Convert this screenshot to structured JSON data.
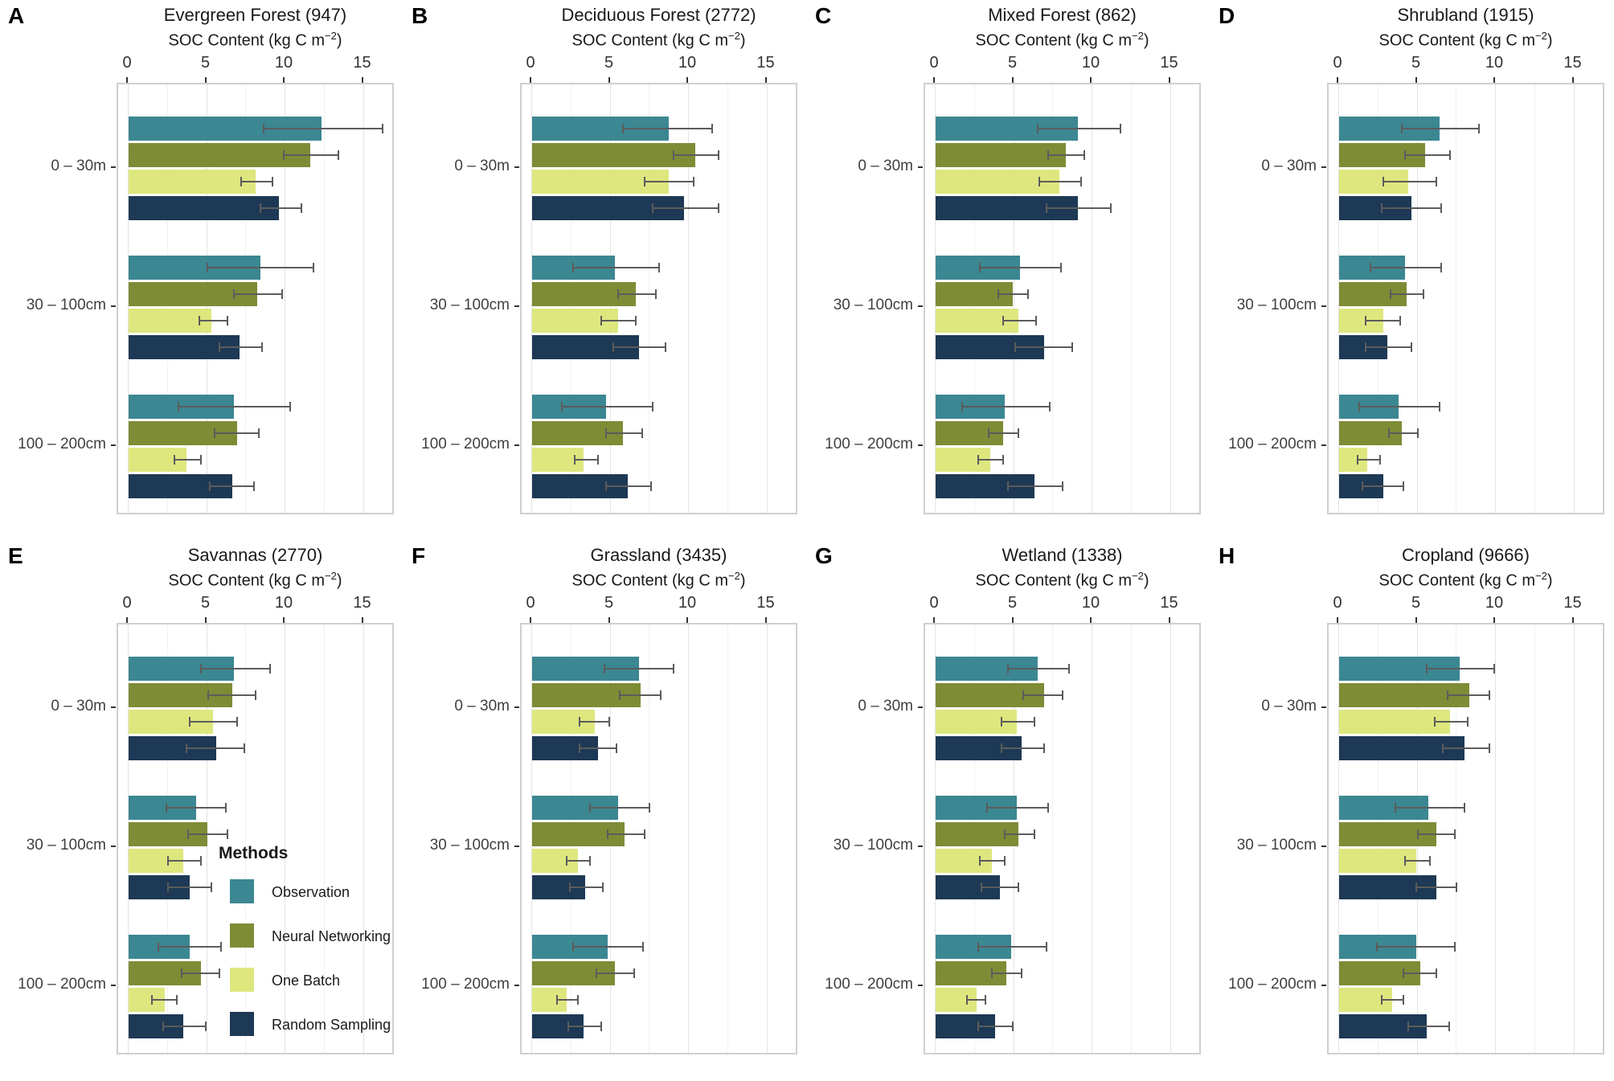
{
  "chart_data": {
    "type": "bar",
    "orientation": "horizontal",
    "xlabel": "SOC Content (kg C m⁻²)",
    "xlabel_prefix": "SOC Content (kg C m",
    "xlabel_sup": "−2",
    "xlabel_suffix": ")",
    "x_ticks": [
      0,
      5,
      10,
      15
    ],
    "xlim": [
      0,
      16.9
    ],
    "grid_minor": [
      2.5,
      7.5,
      12.5
    ],
    "categories": [
      "0 – 30m",
      "30 – 100cm",
      "100 – 200cm"
    ],
    "legend_title": "Methods",
    "methods": [
      {
        "name": "Observation",
        "color": "#3B8792"
      },
      {
        "name": "Neural Networking",
        "color": "#7E8C36"
      },
      {
        "name": "One Batch",
        "color": "#DDE77E"
      },
      {
        "name": "Random Sampling",
        "color": "#1D3955"
      }
    ],
    "error_bar_color": "#5c5c5c",
    "panels": [
      {
        "letter": "A",
        "title": "Evergreen Forest (947)",
        "values": [
          [
            12.3,
            11.6,
            8.1,
            9.6
          ],
          [
            8.4,
            8.2,
            5.3,
            7.1
          ],
          [
            6.7,
            6.9,
            3.7,
            6.6
          ]
        ],
        "err_lo": [
          [
            8.6,
            9.9,
            7.2,
            8.4
          ],
          [
            5.0,
            6.7,
            4.5,
            5.8
          ],
          [
            3.2,
            5.5,
            2.9,
            5.2
          ]
        ],
        "err_hi": [
          [
            16.2,
            13.4,
            9.2,
            11.0
          ],
          [
            11.8,
            9.8,
            6.3,
            8.5
          ],
          [
            10.3,
            8.3,
            4.6,
            8.0
          ]
        ]
      },
      {
        "letter": "B",
        "title": "Deciduous Forest (2772)",
        "values": [
          [
            8.7,
            10.4,
            8.7,
            9.7
          ],
          [
            5.3,
            6.6,
            5.5,
            6.8
          ],
          [
            4.7,
            5.8,
            3.3,
            6.1
          ]
        ],
        "err_lo": [
          [
            5.8,
            9.0,
            7.2,
            7.7
          ],
          [
            2.6,
            5.5,
            4.4,
            5.2
          ],
          [
            1.9,
            4.7,
            2.7,
            4.7
          ]
        ],
        "err_hi": [
          [
            11.5,
            11.9,
            10.3,
            11.9
          ],
          [
            8.1,
            7.9,
            6.6,
            8.5
          ],
          [
            7.7,
            7.0,
            4.2,
            7.6
          ]
        ]
      },
      {
        "letter": "C",
        "title": "Mixed Forest (862)",
        "values": [
          [
            9.1,
            8.3,
            7.9,
            9.1
          ],
          [
            5.4,
            4.9,
            5.3,
            6.9
          ],
          [
            4.4,
            4.3,
            3.5,
            6.3
          ]
        ],
        "err_lo": [
          [
            6.5,
            7.2,
            6.6,
            7.1
          ],
          [
            2.8,
            4.0,
            4.3,
            5.1
          ],
          [
            1.7,
            3.4,
            2.7,
            4.6
          ]
        ],
        "err_hi": [
          [
            11.8,
            9.5,
            9.3,
            11.2
          ],
          [
            8.0,
            5.9,
            6.4,
            8.7
          ],
          [
            7.3,
            5.3,
            4.3,
            8.1
          ]
        ]
      },
      {
        "letter": "D",
        "title": "Shrubland (1915)",
        "values": [
          [
            6.4,
            5.5,
            4.4,
            4.6
          ],
          [
            4.2,
            4.3,
            2.8,
            3.1
          ],
          [
            3.8,
            4.0,
            1.8,
            2.8
          ]
        ],
        "err_lo": [
          [
            4.0,
            4.2,
            2.8,
            2.7
          ],
          [
            2.0,
            3.3,
            1.7,
            1.7
          ],
          [
            1.3,
            3.2,
            1.2,
            1.5
          ]
        ],
        "err_hi": [
          [
            8.9,
            7.1,
            6.2,
            6.5
          ],
          [
            6.5,
            5.4,
            3.9,
            4.6
          ],
          [
            6.4,
            5.0,
            2.6,
            4.1
          ]
        ]
      },
      {
        "letter": "E",
        "title": "Savannas (2770)",
        "values": [
          [
            6.7,
            6.6,
            5.4,
            5.6
          ],
          [
            4.3,
            5.0,
            3.5,
            3.9
          ],
          [
            3.9,
            4.6,
            2.3,
            3.5
          ]
        ],
        "err_lo": [
          [
            4.6,
            5.1,
            3.9,
            3.7
          ],
          [
            2.4,
            3.8,
            2.5,
            2.5
          ],
          [
            1.9,
            3.4,
            1.5,
            2.2
          ]
        ],
        "err_hi": [
          [
            9.0,
            8.1,
            6.9,
            7.4
          ],
          [
            6.2,
            6.3,
            4.6,
            5.3
          ],
          [
            5.9,
            5.8,
            3.1,
            4.9
          ]
        ]
      },
      {
        "letter": "F",
        "title": "Grassland (3435)",
        "values": [
          [
            6.8,
            6.9,
            4.0,
            4.2
          ],
          [
            5.5,
            5.9,
            2.9,
            3.4
          ],
          [
            4.8,
            5.3,
            2.2,
            3.3
          ]
        ],
        "err_lo": [
          [
            4.6,
            5.6,
            3.0,
            3.0
          ],
          [
            3.7,
            4.8,
            2.2,
            2.4
          ],
          [
            2.6,
            4.1,
            1.6,
            2.3
          ]
        ],
        "err_hi": [
          [
            9.0,
            8.2,
            4.9,
            5.4
          ],
          [
            7.5,
            7.2,
            3.7,
            4.5
          ],
          [
            7.1,
            6.5,
            2.9,
            4.4
          ]
        ]
      },
      {
        "letter": "G",
        "title": "Wetland (1338)",
        "values": [
          [
            6.5,
            6.9,
            5.2,
            5.5
          ],
          [
            5.2,
            5.3,
            3.6,
            4.1
          ],
          [
            4.8,
            4.5,
            2.6,
            3.8
          ]
        ],
        "err_lo": [
          [
            4.6,
            5.6,
            4.2,
            4.2
          ],
          [
            3.3,
            4.4,
            2.8,
            2.9
          ],
          [
            2.7,
            3.6,
            2.0,
            2.7
          ]
        ],
        "err_hi": [
          [
            8.5,
            8.1,
            6.3,
            6.9
          ],
          [
            7.2,
            6.3,
            4.4,
            5.3
          ],
          [
            7.1,
            5.5,
            3.2,
            4.9
          ]
        ]
      },
      {
        "letter": "H",
        "title": "Cropland (9666)",
        "values": [
          [
            7.7,
            8.3,
            7.1,
            8.0
          ],
          [
            5.7,
            6.2,
            4.9,
            6.2
          ],
          [
            4.9,
            5.2,
            3.4,
            5.6
          ]
        ],
        "err_lo": [
          [
            5.6,
            6.9,
            6.1,
            6.6
          ],
          [
            3.6,
            5.0,
            4.2,
            4.9
          ],
          [
            2.4,
            4.1,
            2.7,
            4.4
          ]
        ],
        "err_hi": [
          [
            9.9,
            9.6,
            8.2,
            9.6
          ],
          [
            8.0,
            7.4,
            5.8,
            7.5
          ],
          [
            7.4,
            6.2,
            4.1,
            7.0
          ]
        ]
      }
    ]
  }
}
